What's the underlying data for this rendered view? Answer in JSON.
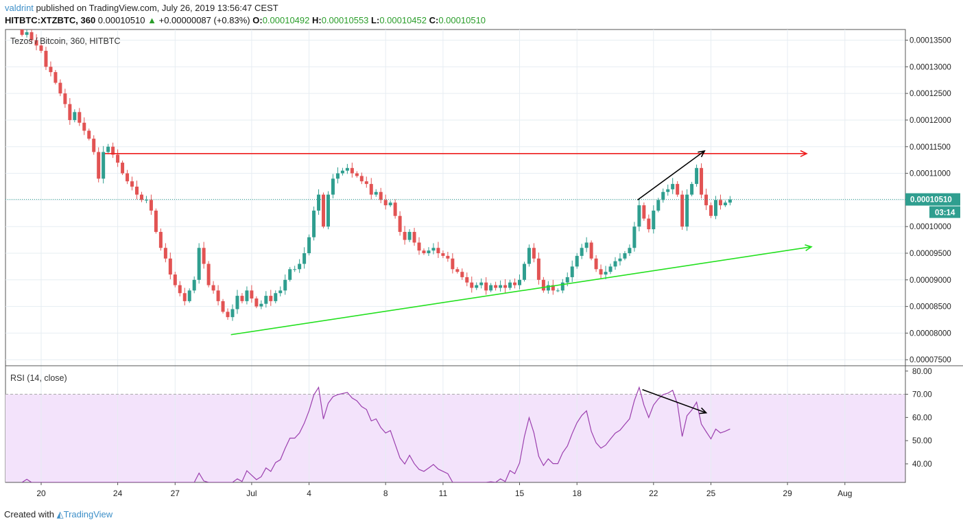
{
  "header": {
    "user": "valdrint",
    "published": "published on TradingView.com, July 26, 2019 13:56:47 CEST",
    "symbol": "HITBTC:XTZBTC, 360",
    "last": "0.00010510",
    "change": "+0.00000087 (+0.83%)",
    "o_label": "O:",
    "o": "0.00010492",
    "h_label": "H:",
    "h": "0.00010553",
    "l_label": "L:",
    "l": "0.00010452",
    "c_label": "C:",
    "c": "0.00010510"
  },
  "footer": {
    "created": "Created with",
    "brand": "TradingView"
  },
  "colors": {
    "up": "#2f9e8f",
    "down": "#e25353",
    "rsi": "#9b3fae",
    "rsi_band": "#f3e3fb",
    "resistance": "#ee1c1c",
    "support": "#22e01e",
    "price_line": "#2f9e8f"
  },
  "chart_data": {
    "type": "candlestick",
    "title": "Tezos / Bitcoin, 360, HITBTC",
    "interval_hours": 6,
    "start": "2019-06-19T00:00",
    "first_open": 0.000137,
    "closes": [
      0.000136,
      0.0001365,
      0.000135,
      0.000134,
      0.000133,
      0.00013,
      0.000129,
      0.000127,
      0.000125,
      0.000123,
      0.00012,
      0.0001215,
      0.0001195,
      0.000118,
      0.0001165,
      0.000114,
      0.000109,
      0.000114,
      0.000115,
      0.0001135,
      0.000112,
      0.00011,
      0.0001085,
      0.0001075,
      0.000106,
      0.000105,
      0.000105,
      0.000103,
      9.9e-05,
      9.6e-05,
      9.4e-05,
      9.1e-05,
      8.9e-05,
      8.75e-05,
      8.6e-05,
      8.8e-05,
      9e-05,
      9.6e-05,
      9.3e-05,
      8.9e-05,
      8.8e-05,
      8.6e-05,
      8.4e-05,
      8.3e-05,
      8.45e-05,
      8.7e-05,
      8.6e-05,
      8.8e-05,
      8.65e-05,
      8.5e-05,
      8.55e-05,
      8.7e-05,
      8.6e-05,
      8.75e-05,
      8.8e-05,
      9e-05,
      9.2e-05,
      9.2e-05,
      9.3e-05,
      9.5e-05,
      9.8e-05,
      0.000103,
      0.000106,
      0.0001,
      0.000106,
      0.000109,
      0.00011,
      0.0001105,
      0.000111,
      0.00011,
      0.0001095,
      0.0001085,
      0.000108,
      0.000106,
      0.0001065,
      0.000105,
      0.000104,
      0.0001045,
      0.000102,
      9.9e-05,
      9.75e-05,
      9.9e-05,
      9.7e-05,
      9.55e-05,
      9.5e-05,
      9.55e-05,
      9.6e-05,
      9.5e-05,
      9.45e-05,
      9.4e-05,
      9.2e-05,
      9.15e-05,
      9.05e-05,
      8.95e-05,
      8.85e-05,
      8.9e-05,
      8.95e-05,
      8.8e-05,
      8.9e-05,
      8.85e-05,
      8.9e-05,
      8.85e-05,
      8.95e-05,
      8.9e-05,
      9e-05,
      9.3e-05,
      9.6e-05,
      9.4e-05,
      9e-05,
      8.8e-05,
      8.9e-05,
      8.8e-05,
      8.8e-05,
      8.95e-05,
      9.05e-05,
      9.25e-05,
      9.45e-05,
      9.6e-05,
      9.7e-05,
      9.4e-05,
      9.2e-05,
      9.1e-05,
      9.15e-05,
      9.25e-05,
      9.35e-05,
      9.4e-05,
      9.5e-05,
      9.6e-05,
      0.0001,
      0.000104,
      0.0001015,
      9.95e-05,
      0.000103,
      0.000105,
      0.0001065,
      0.000107,
      0.000108,
      0.000106,
      0.0001,
      0.000106,
      0.000108,
      0.000111,
      0.000106,
      0.000104,
      0.000102,
      0.000105,
      0.000104,
      0.0001045,
      0.0001051
    ],
    "ylim": [
      7.4e-05,
      0.000137
    ],
    "y_ticks": [
      7.5e-05,
      8e-05,
      8.5e-05,
      9e-05,
      9.5e-05,
      0.0001,
      0.000105,
      0.00011,
      0.000115,
      0.00012,
      0.000125,
      0.00013,
      0.000135
    ],
    "x_ticks": [
      {
        "label": "20",
        "date": "2019-06-20"
      },
      {
        "label": "24",
        "date": "2019-06-24"
      },
      {
        "label": "27",
        "date": "2019-06-27"
      },
      {
        "label": "Jul",
        "date": "2019-07-01"
      },
      {
        "label": "4",
        "date": "2019-07-04"
      },
      {
        "label": "8",
        "date": "2019-07-08"
      },
      {
        "label": "11",
        "date": "2019-07-11"
      },
      {
        "label": "15",
        "date": "2019-07-15"
      },
      {
        "label": "18",
        "date": "2019-07-18"
      },
      {
        "label": "22",
        "date": "2019-07-22"
      },
      {
        "label": "25",
        "date": "2019-07-25"
      },
      {
        "label": "29",
        "date": "2019-07-29"
      },
      {
        "label": "Aug",
        "date": "2019-08-01"
      }
    ],
    "last_price_label": "0.00010510",
    "countdown": "03:14",
    "grid": true,
    "indicator": {
      "title": "RSI (14, close)",
      "period": 14,
      "ylim": [
        32,
        82
      ],
      "y_ticks": [
        40,
        50,
        60,
        70,
        80
      ],
      "upper_band": 70,
      "lower_band": 30
    },
    "drawings": [
      {
        "name": "resistance-line",
        "color": "resistance",
        "arrow": true,
        "pane": "price",
        "from": [
          "2019-06-23T08:00",
          0.0001137
        ],
        "to": [
          "2019-07-30T00:00",
          0.0001137
        ]
      },
      {
        "name": "support-trendline",
        "color": "support",
        "arrow": true,
        "pane": "price",
        "from": [
          "2019-06-29T22:00",
          7.97e-05
        ],
        "to": [
          "2019-07-30T06:00",
          9.62e-05
        ]
      },
      {
        "name": "price-higher-high-arrow",
        "color": "#000000",
        "arrow": true,
        "pane": "price",
        "from": [
          "2019-07-21T04:00",
          0.000105
        ],
        "to": [
          "2019-07-24T16:00",
          0.0001142
        ]
      },
      {
        "name": "rsi-lower-high-arrow",
        "color": "#000000",
        "arrow": true,
        "pane": "rsi",
        "from": [
          "2019-07-21T10:00",
          72
        ],
        "to": [
          "2019-07-24T18:00",
          62
        ]
      }
    ]
  }
}
